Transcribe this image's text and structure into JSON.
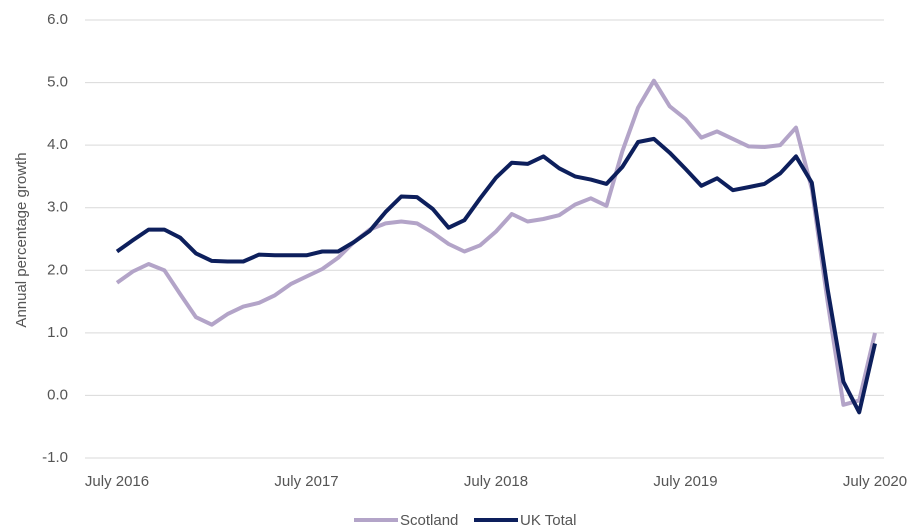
{
  "chart_data": {
    "type": "line",
    "y_label": "Annual percentage growth",
    "categories": [
      "July 2016",
      null,
      null,
      null,
      null,
      null,
      null,
      null,
      null,
      null,
      null,
      null,
      "July 2017",
      null,
      null,
      null,
      null,
      null,
      null,
      null,
      null,
      null,
      null,
      null,
      "July 2018",
      null,
      null,
      null,
      null,
      null,
      null,
      null,
      null,
      null,
      null,
      null,
      "July 2019",
      null,
      null,
      null,
      null,
      null,
      null,
      null,
      null,
      null,
      null,
      null,
      "July 2020"
    ],
    "series": [
      {
        "name": "Scotland",
        "color": "#b3a4c8",
        "values": [
          1.8,
          1.98,
          2.1,
          2.0,
          1.62,
          1.25,
          1.13,
          1.3,
          1.42,
          1.48,
          1.6,
          1.78,
          1.9,
          2.02,
          2.2,
          2.45,
          2.65,
          2.75,
          2.78,
          2.75,
          2.6,
          2.42,
          2.3,
          2.4,
          2.62,
          2.9,
          2.78,
          2.82,
          2.88,
          3.05,
          3.15,
          3.03,
          3.9,
          4.6,
          5.03,
          4.62,
          4.42,
          4.12,
          4.22,
          4.1,
          3.98,
          3.97,
          4.0,
          4.28,
          3.3,
          1.5,
          -0.15,
          -0.08,
          1.0
        ]
      },
      {
        "name": "UK Total",
        "color": "#0d1f5c",
        "values": [
          2.3,
          2.48,
          2.65,
          2.65,
          2.52,
          2.27,
          2.15,
          2.14,
          2.14,
          2.25,
          2.24,
          2.24,
          2.24,
          2.3,
          2.3,
          2.45,
          2.63,
          2.93,
          3.18,
          3.17,
          2.98,
          2.68,
          2.8,
          3.15,
          3.48,
          3.72,
          3.7,
          3.82,
          3.63,
          3.5,
          3.45,
          3.38,
          3.65,
          4.05,
          4.1,
          3.88,
          3.62,
          3.35,
          3.47,
          3.28,
          3.33,
          3.38,
          3.55,
          3.82,
          3.4,
          1.7,
          0.22,
          -0.27,
          0.83
        ]
      }
    ],
    "ylim": [
      -1,
      6
    ],
    "yticks": [
      {
        "value": -1,
        "label": "-1.0"
      },
      {
        "value": 0,
        "label": "0.0"
      },
      {
        "value": 1,
        "label": "1.0"
      },
      {
        "value": 2,
        "label": "2.0"
      },
      {
        "value": 3,
        "label": "3.0"
      },
      {
        "value": 4,
        "label": "4.0"
      },
      {
        "value": 5,
        "label": "5.0"
      },
      {
        "value": 6,
        "label": "6.0"
      }
    ],
    "grid": true,
    "legend": "bottom"
  }
}
